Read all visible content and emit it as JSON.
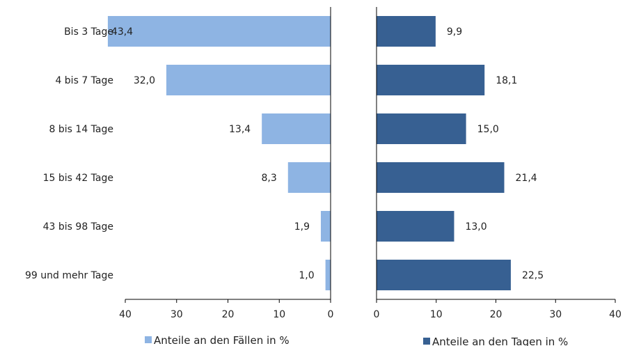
{
  "chart_data": {
    "type": "bar",
    "orientation": "horizontal",
    "layout": "butterfly",
    "categories": [
      "Bis 3 Tage",
      "4 bis 7 Tage",
      "8 bis 14 Tage",
      "15 bis 42 Tage",
      "43 bis 98 Tage",
      "99 und mehr Tage"
    ],
    "series": [
      {
        "name": "Anteile an den Fällen in %",
        "values": [
          43.4,
          32.0,
          13.4,
          8.3,
          1.9,
          1.0
        ],
        "value_labels": [
          "43,4",
          "32,0",
          "13,4",
          "8,3",
          "1,9",
          "1,0"
        ],
        "color": "#8EB4E3",
        "axis_ticks": [
          "40",
          "30",
          "20",
          "10",
          "0"
        ],
        "xlim": [
          0,
          40
        ],
        "direction": "reversed"
      },
      {
        "name": "Anteile an den Tagen in %",
        "values": [
          9.9,
          18.1,
          15.0,
          21.4,
          13.0,
          22.5
        ],
        "value_labels": [
          "9,9",
          "18,1",
          "15,0",
          "21,4",
          "13,0",
          "22,5"
        ],
        "color": "#376092",
        "axis_ticks": [
          "0",
          "10",
          "20",
          "30",
          "40"
        ],
        "xlim": [
          0,
          40
        ],
        "direction": "normal"
      }
    ],
    "grid": false,
    "legend_position": "bottom"
  }
}
